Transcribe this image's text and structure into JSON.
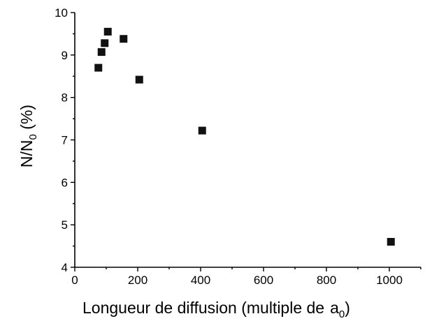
{
  "chart_data": {
    "type": "scatter",
    "xlabel": "Longueur de diffusion (multiple de",
    "xlabel_symbol": "a",
    "xlabel_subscript": "0",
    "xlabel_close": ")",
    "ylabel": "N/N",
    "ylabel_subscript": "0",
    "ylabel_unit": " (%)",
    "xlim": [
      0,
      1100
    ],
    "ylim": [
      4,
      10
    ],
    "xticks": [
      0,
      200,
      400,
      600,
      800,
      1000
    ],
    "yticks": [
      4,
      5,
      6,
      7,
      8,
      9,
      10
    ],
    "xtick_labels": [
      "0",
      "200",
      "400",
      "600",
      "800",
      "1000"
    ],
    "ytick_labels": [
      "4",
      "5",
      "6",
      "7",
      "8",
      "9",
      "10"
    ],
    "grid": false,
    "marker_color": "#111111",
    "series": [
      {
        "marker": "square",
        "points": [
          {
            "x": 75,
            "y": 8.7
          },
          {
            "x": 85,
            "y": 9.07
          },
          {
            "x": 95,
            "y": 9.28
          },
          {
            "x": 105,
            "y": 9.55
          },
          {
            "x": 155,
            "y": 9.38
          },
          {
            "x": 205,
            "y": 8.42
          },
          {
            "x": 405,
            "y": 7.22
          },
          {
            "x": 1005,
            "y": 4.6
          }
        ]
      }
    ]
  }
}
